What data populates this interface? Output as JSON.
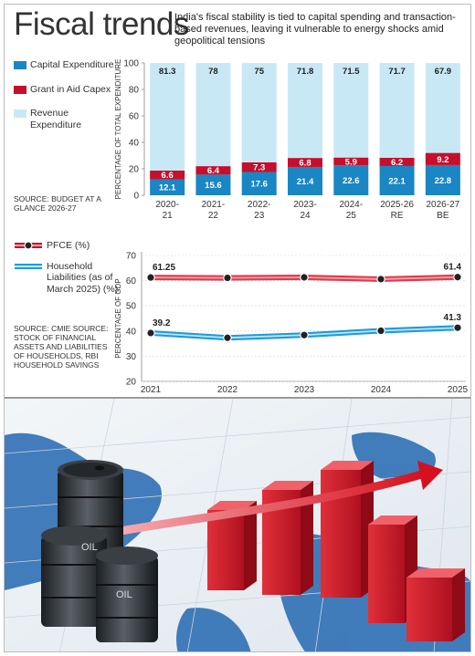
{
  "header": {
    "title": "Fiscal trends",
    "subtitle": "India's fiscal stability is tied to capital spending and transaction-based revenues, leaving it vulnerable to energy shocks amid geopolitical tensions"
  },
  "legend_top": [
    {
      "label": "Capital Expenditure",
      "color": "#1a86c4"
    },
    {
      "label": "Grant in Aid Capex",
      "color": "#c4102c"
    },
    {
      "label": "Revenue Expenditure",
      "color": "#c9e8f5"
    }
  ],
  "source_top": "SOURCE: BUDGET AT A GLANCE 2026-27",
  "legend_bottom": [
    {
      "label": "PFCE (%)",
      "color": "#e03a4a"
    },
    {
      "label": "Household Liabilities (as of March 2025) (%)",
      "color": "#1f9bdc"
    }
  ],
  "source_bottom": "SOURCE: CMIE SOURCE: STOCK OF FINANCIAL ASSETS AND LIABILITIES OF HOUSEHOLDS, RBI HOUSEHOLD SAVINGS",
  "photo": {
    "barrel_label": "OIL",
    "icon": "oil-barrels-and-rising-bar-chart-illustration"
  },
  "chart_data": [
    {
      "type": "bar",
      "stacked": true,
      "categories": [
        "2020-21",
        "2021-22",
        "2022-23",
        "2023-24",
        "2024-25",
        "2025-26 RE",
        "2026-27 BE"
      ],
      "series": [
        {
          "name": "Capital Expenditure",
          "values": [
            12.1,
            15.6,
            17.6,
            21.4,
            22.6,
            22.1,
            22.8
          ],
          "color": "#1a86c4"
        },
        {
          "name": "Grant in Aid Capex",
          "values": [
            6.6,
            6.4,
            7.3,
            6.8,
            5.9,
            6.2,
            9.2
          ],
          "color": "#c4102c"
        },
        {
          "name": "Revenue Expenditure",
          "values": [
            81.3,
            78,
            75,
            71.8,
            71.5,
            71.7,
            67.9
          ],
          "color": "#c9e8f5"
        }
      ],
      "ylabel": "PERCENTAGE OF TOTAL EXPENDITURE",
      "ylim": [
        0,
        100
      ],
      "yticks": [
        0,
        20,
        40,
        60,
        80,
        100
      ]
    },
    {
      "type": "line",
      "x": [
        "2021",
        "2022",
        "2023",
        "2024",
        "2025"
      ],
      "series": [
        {
          "name": "PFCE (%)",
          "values": [
            61.25,
            61.1,
            61.3,
            60.6,
            61.4
          ],
          "labels": [
            "61.25",
            "",
            "",
            "",
            "61.4"
          ],
          "color": "#e03a4a"
        },
        {
          "name": "Household Liabilities (as of March 2025) (%)",
          "values": [
            39.2,
            37.3,
            38.4,
            40.1,
            41.3
          ],
          "labels": [
            "39.2",
            "",
            "",
            "",
            "41.3"
          ],
          "color": "#1f9bdc"
        }
      ],
      "ylabel": "PERCENTAGE OF GDP",
      "ylim": [
        20,
        70
      ],
      "yticks": [
        20,
        30,
        40,
        50,
        60,
        70
      ]
    }
  ]
}
